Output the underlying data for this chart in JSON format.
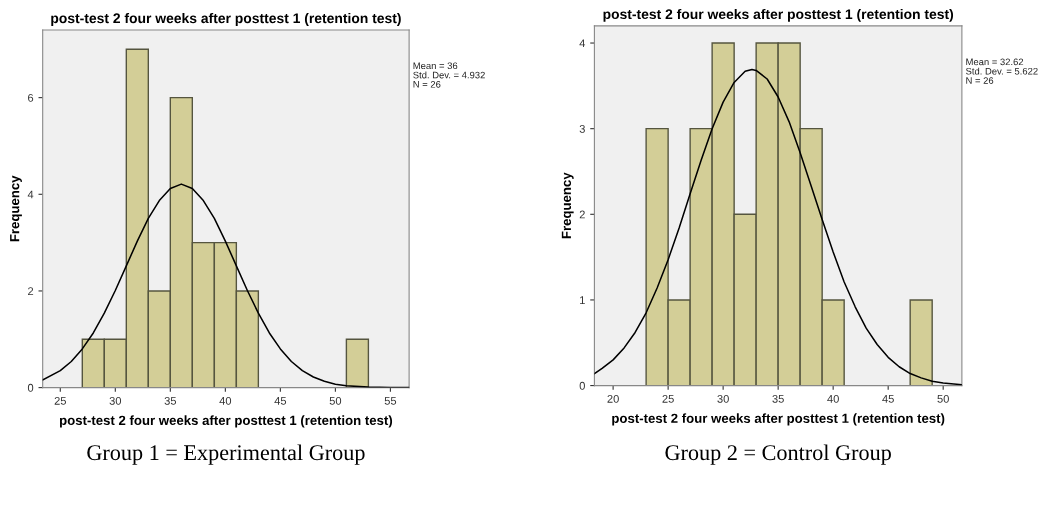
{
  "chart_data": [
    {
      "type": "histogram",
      "title": "post-test 2 four weeks after posttest 1 (retention test)",
      "xlabel": "post-test 2 four weeks after posttest 1 (retention test)",
      "ylabel": "Frequency",
      "bins": [
        27,
        29,
        31,
        33,
        35,
        37,
        39,
        41,
        43,
        45,
        47,
        49,
        51,
        53
      ],
      "series": [
        {
          "color": "#d3ce97",
          "values": [
            1,
            1,
            7,
            2,
            6,
            3,
            3,
            2,
            0,
            0,
            0,
            0,
            1
          ]
        },
        {
          "type": "line",
          "color": "#000000",
          "x": [
            23.4,
            25,
            26,
            27,
            28,
            29,
            30,
            31,
            32,
            33,
            34,
            35,
            36,
            37,
            38,
            39,
            40,
            41,
            42,
            43,
            44,
            45,
            46,
            47,
            48,
            49,
            50,
            51,
            53,
            55,
            56.7
          ],
          "values": [
            0.16,
            0.35,
            0.54,
            0.8,
            1.13,
            1.54,
            2.01,
            2.52,
            3.03,
            3.5,
            3.87,
            4.12,
            4.21,
            4.12,
            3.87,
            3.5,
            3.03,
            2.52,
            2.01,
            1.54,
            1.13,
            0.8,
            0.54,
            0.35,
            0.22,
            0.13,
            0.07,
            0.04,
            0.01,
            0,
            0
          ]
        }
      ],
      "xlim": [
        23.4,
        56.7
      ],
      "xticks": [
        25,
        30,
        35,
        40,
        45,
        50,
        55
      ],
      "ylim": [
        0,
        7.4
      ],
      "yticks": [
        0,
        2,
        4,
        6
      ],
      "grid": false,
      "annotations": [
        "Mean = 36",
        "Std. Dev. = 4.932",
        "N = 26",
        "Group 1 = Experimental Group"
      ]
    },
    {
      "type": "histogram",
      "title": "post-test 2 four weeks after posttest 1 (retention test)",
      "xlabel": "post-test 2 four weeks after posttest 1 (retention test)",
      "ylabel": "Frequency",
      "bins": [
        23,
        25,
        27,
        29,
        31,
        33,
        35,
        37,
        39,
        41,
        43,
        45,
        47,
        49
      ],
      "series": [
        {
          "color": "#d3ce97",
          "values": [
            3,
            1,
            3,
            4,
            2,
            4,
            4,
            3,
            1,
            0,
            0,
            0,
            1
          ]
        },
        {
          "type": "line",
          "color": "#000000",
          "x": [
            18.3,
            19,
            20,
            21,
            22,
            23,
            24,
            25,
            26,
            27,
            28,
            29,
            30,
            31,
            32,
            32.62,
            33,
            34,
            35,
            36,
            37,
            38,
            39,
            40,
            41,
            42,
            43,
            44,
            45,
            46,
            47,
            48,
            49,
            50,
            51.7
          ],
          "values": [
            0.14,
            0.2,
            0.3,
            0.44,
            0.62,
            0.85,
            1.14,
            1.47,
            1.84,
            2.24,
            2.63,
            3.0,
            3.31,
            3.54,
            3.67,
            3.69,
            3.68,
            3.58,
            3.37,
            3.08,
            2.72,
            2.33,
            1.94,
            1.56,
            1.21,
            0.92,
            0.67,
            0.48,
            0.33,
            0.22,
            0.14,
            0.09,
            0.05,
            0.03,
            0.01
          ]
        }
      ],
      "xlim": [
        18.3,
        51.7
      ],
      "xticks": [
        20,
        25,
        30,
        35,
        40,
        45,
        50
      ],
      "ylim": [
        0,
        4.2
      ],
      "yticks": [
        0,
        1,
        2,
        3,
        4
      ],
      "grid": false,
      "annotations": [
        "Mean = 32.62",
        "Std. Dev. = 5.622",
        "N = 26",
        "Group 2 = Control Group"
      ]
    }
  ]
}
